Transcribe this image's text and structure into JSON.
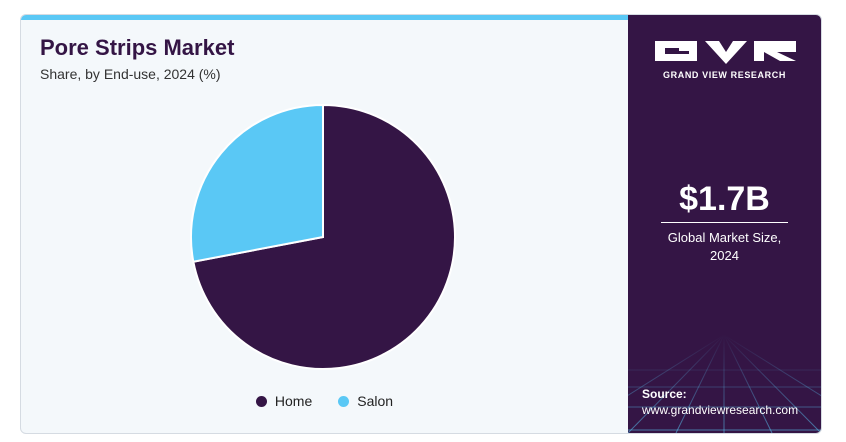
{
  "chart_data": {
    "type": "pie",
    "title": "Pore Strips Market",
    "subtitle": "Share, by End-use, 2024 (%)",
    "categories": [
      "Home",
      "Salon"
    ],
    "values": [
      72,
      28
    ],
    "colors": [
      "#341545",
      "#5ac8f5"
    ],
    "start_angle_deg": 0,
    "direction": "clockwise",
    "legend_position": "bottom"
  },
  "brand": {
    "name": "GRAND VIEW RESEARCH"
  },
  "stats": {
    "market_size": "$1.7B",
    "market_size_label_line1": "Global Market Size,",
    "market_size_label_line2": "2024"
  },
  "source": {
    "label": "Source:",
    "url": "www.grandviewresearch.com"
  }
}
